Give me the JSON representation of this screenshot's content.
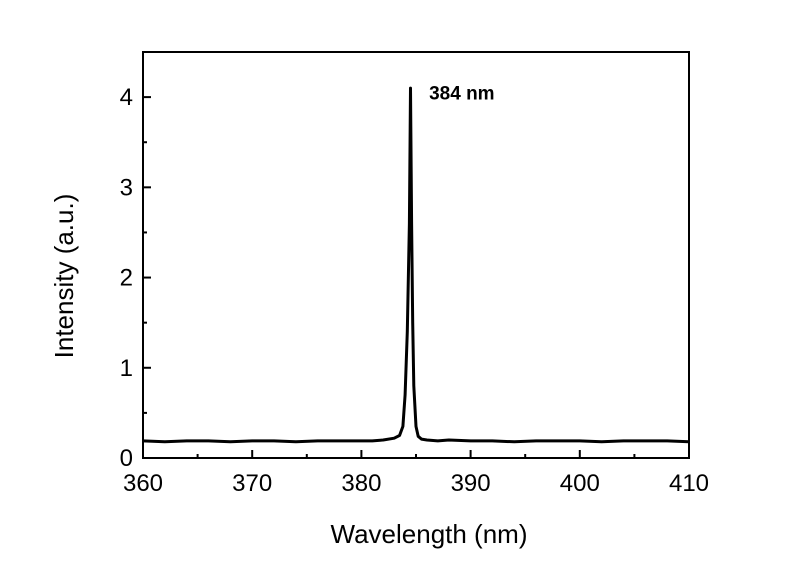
{
  "chart_data": {
    "type": "line",
    "title": "",
    "xlabel": "Wavelength (nm)",
    "ylabel": "Intensity (a.u.)",
    "xlim": [
      360,
      410
    ],
    "ylim": [
      0,
      4.5
    ],
    "xticks": [
      360,
      370,
      380,
      390,
      400,
      410
    ],
    "yticks": [
      0,
      1,
      2,
      3,
      4
    ],
    "grid": false,
    "legend": "none",
    "annotations": [
      {
        "text": "384 nm",
        "x": 386.2,
        "y": 4.05
      }
    ],
    "series": [
      {
        "color": "#000000",
        "x": [
          360,
          362,
          364,
          366,
          368,
          370,
          372,
          374,
          376,
          378,
          380,
          381,
          382,
          383,
          383.5,
          383.8,
          384.0,
          384.2,
          384.4,
          384.5,
          384.6,
          384.7,
          384.8,
          385.0,
          385.2,
          385.5,
          386,
          387,
          388,
          390,
          392,
          394,
          396,
          398,
          400,
          402,
          404,
          406,
          408,
          410
        ],
        "y": [
          0.19,
          0.18,
          0.19,
          0.19,
          0.18,
          0.19,
          0.19,
          0.18,
          0.19,
          0.19,
          0.19,
          0.19,
          0.2,
          0.22,
          0.25,
          0.35,
          0.7,
          1.4,
          2.6,
          4.1,
          2.6,
          1.5,
          0.8,
          0.35,
          0.24,
          0.21,
          0.2,
          0.19,
          0.2,
          0.19,
          0.19,
          0.18,
          0.19,
          0.19,
          0.19,
          0.18,
          0.19,
          0.19,
          0.19,
          0.18
        ]
      }
    ]
  }
}
